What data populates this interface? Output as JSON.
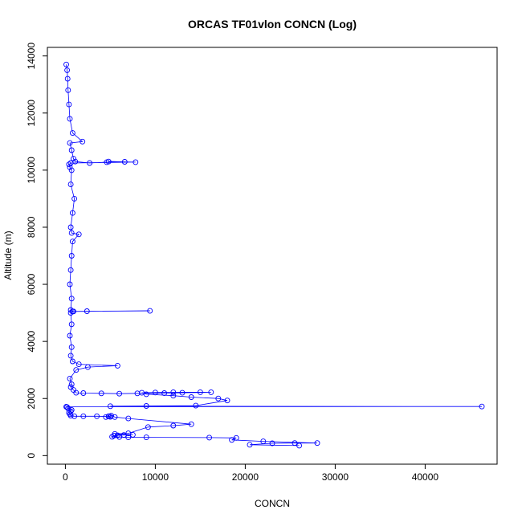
{
  "chart_data": {
    "type": "line",
    "title": "ORCAS TF01vlon CONCN (Log)",
    "xlabel": "CONCN",
    "ylabel": "Altitude (m)",
    "xlim": [
      -2000,
      48000
    ],
    "ylim": [
      -300,
      14300
    ],
    "xticks": [
      0,
      10000,
      20000,
      30000,
      40000
    ],
    "yticks": [
      0,
      2000,
      4000,
      6000,
      8000,
      10000,
      12000,
      14000
    ],
    "grid": false,
    "legend": "none",
    "marker": "open-circle",
    "color": "#0000ff",
    "series": [
      {
        "x": [
          26000,
          20500,
          23000,
          25500,
          28000,
          22000,
          18500,
          19000,
          16000,
          9000,
          7000,
          6000,
          5200,
          5400,
          5800,
          6500,
          7500,
          5500,
          7000,
          9200,
          12000,
          14000,
          7000,
          5500,
          5100,
          4800,
          4500,
          5000,
          4800,
          3500,
          2000,
          1000,
          600,
          500,
          400,
          600,
          700,
          300,
          200,
          100,
          46300,
          5000,
          9000,
          14500,
          18000,
          17000,
          14000,
          12000,
          9000,
          8500,
          10000,
          12000,
          15000,
          16200,
          13000,
          11000,
          8000,
          6000,
          4000,
          2000,
          1200,
          900,
          600,
          700,
          500,
          1200,
          2500,
          5800,
          1500,
          800,
          600,
          700,
          500,
          700,
          600,
          800,
          9400,
          2400,
          900,
          600,
          700,
          500,
          600,
          700,
          800,
          1500,
          700,
          600,
          800,
          1000,
          600,
          700,
          500,
          400,
          600,
          7800,
          4800,
          6600,
          4600,
          2700,
          1100,
          900,
          700,
          500,
          1900,
          800,
          500,
          400,
          300,
          250,
          200,
          100
        ],
        "y": [
          350,
          380,
          430,
          440,
          440,
          500,
          550,
          620,
          630,
          640,
          640,
          650,
          660,
          700,
          710,
          720,
          730,
          760,
          780,
          1000,
          1050,
          1100,
          1300,
          1350,
          1400,
          1380,
          1350,
          1360,
          1370,
          1380,
          1380,
          1380,
          1400,
          1450,
          1500,
          1550,
          1600,
          1650,
          1700,
          1710,
          1720,
          1730,
          1740,
          1750,
          1930,
          2000,
          2050,
          2100,
          2150,
          2200,
          2210,
          2220,
          2220,
          2220,
          2200,
          2190,
          2180,
          2170,
          2180,
          2190,
          2200,
          2300,
          2400,
          2500,
          2700,
          3000,
          3100,
          3150,
          3200,
          3300,
          3500,
          3800,
          4200,
          4600,
          5000,
          5050,
          5070,
          5060,
          5050,
          5100,
          5500,
          6000,
          6500,
          7000,
          7500,
          7750,
          7800,
          8000,
          8500,
          9000,
          9500,
          10000,
          10100,
          10200,
          10250,
          10280,
          10300,
          10290,
          10280,
          10250,
          10300,
          10400,
          10700,
          10950,
          11000,
          11300,
          11800,
          12300,
          12800,
          13200,
          13500,
          13700
        ]
      }
    ]
  }
}
